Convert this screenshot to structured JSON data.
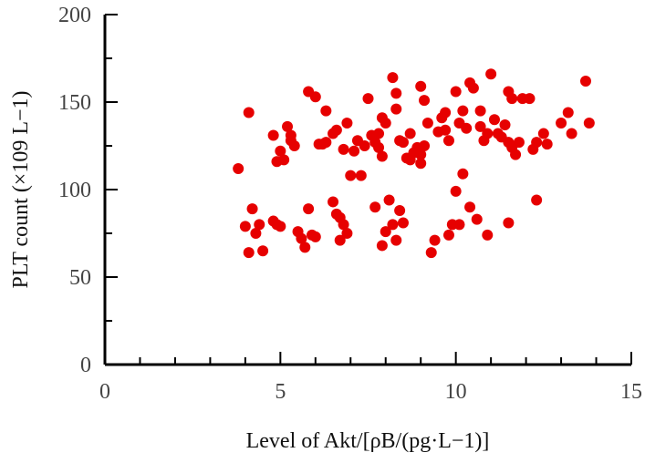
{
  "chart_data": {
    "type": "scatter",
    "xlabel": "Level of Akt/[ρB/(pg·L−1)]",
    "ylabel": "PLT count (×109 L−1)",
    "xlim": [
      0,
      15
    ],
    "ylim": [
      0,
      200
    ],
    "x_ticks": [
      "0",
      "5",
      "10",
      "15"
    ],
    "y_ticks": [
      "0",
      "50",
      "100",
      "150",
      "200"
    ],
    "color": "#e60000",
    "grid": false,
    "points": [
      [
        3.8,
        112
      ],
      [
        4.1,
        144
      ],
      [
        4.0,
        79
      ],
      [
        4.2,
        89
      ],
      [
        4.1,
        64
      ],
      [
        4.3,
        75
      ],
      [
        4.4,
        80
      ],
      [
        4.5,
        65
      ],
      [
        4.8,
        82
      ],
      [
        4.9,
        80
      ],
      [
        5.0,
        79
      ],
      [
        4.8,
        131
      ],
      [
        5.0,
        122
      ],
      [
        4.9,
        116
      ],
      [
        5.1,
        117
      ],
      [
        5.2,
        136
      ],
      [
        5.3,
        131
      ],
      [
        5.4,
        125
      ],
      [
        5.3,
        128
      ],
      [
        5.5,
        76
      ],
      [
        5.6,
        72
      ],
      [
        5.7,
        67
      ],
      [
        5.8,
        89
      ],
      [
        5.9,
        74
      ],
      [
        6.0,
        73
      ],
      [
        5.8,
        156
      ],
      [
        6.0,
        153
      ],
      [
        6.1,
        126
      ],
      [
        6.2,
        126
      ],
      [
        6.3,
        127
      ],
      [
        6.3,
        145
      ],
      [
        6.5,
        132
      ],
      [
        6.6,
        134
      ],
      [
        6.5,
        93
      ],
      [
        6.6,
        86
      ],
      [
        6.7,
        84
      ],
      [
        6.8,
        80
      ],
      [
        6.9,
        75
      ],
      [
        6.7,
        71
      ],
      [
        6.8,
        123
      ],
      [
        6.9,
        138
      ],
      [
        7.0,
        108
      ],
      [
        7.1,
        122
      ],
      [
        7.2,
        128
      ],
      [
        7.3,
        108
      ],
      [
        7.4,
        125
      ],
      [
        7.5,
        152
      ],
      [
        7.6,
        131
      ],
      [
        7.7,
        127
      ],
      [
        7.8,
        124
      ],
      [
        7.9,
        119
      ],
      [
        7.8,
        132
      ],
      [
        7.9,
        141
      ],
      [
        8.0,
        138
      ],
      [
        7.7,
        90
      ],
      [
        7.9,
        68
      ],
      [
        8.0,
        76
      ],
      [
        8.1,
        94
      ],
      [
        8.2,
        80
      ],
      [
        8.3,
        71
      ],
      [
        8.4,
        88
      ],
      [
        8.5,
        81
      ],
      [
        8.2,
        164
      ],
      [
        8.3,
        155
      ],
      [
        8.3,
        146
      ],
      [
        8.4,
        128
      ],
      [
        8.5,
        127
      ],
      [
        8.6,
        118
      ],
      [
        8.7,
        117
      ],
      [
        8.8,
        121
      ],
      [
        8.9,
        124
      ],
      [
        9.0,
        120
      ],
      [
        9.1,
        125
      ],
      [
        9.0,
        115
      ],
      [
        8.7,
        132
      ],
      [
        9.0,
        159
      ],
      [
        9.1,
        151
      ],
      [
        9.2,
        138
      ],
      [
        9.3,
        64
      ],
      [
        9.4,
        71
      ],
      [
        9.5,
        133
      ],
      [
        9.6,
        141
      ],
      [
        9.7,
        144
      ],
      [
        9.7,
        134
      ],
      [
        9.8,
        128
      ],
      [
        9.9,
        80
      ],
      [
        9.8,
        74
      ],
      [
        10.0,
        99
      ],
      [
        10.1,
        80
      ],
      [
        10.2,
        109
      ],
      [
        10.0,
        156
      ],
      [
        10.1,
        138
      ],
      [
        10.2,
        145
      ],
      [
        10.3,
        135
      ],
      [
        10.4,
        161
      ],
      [
        10.5,
        158
      ],
      [
        10.4,
        90
      ],
      [
        10.6,
        83
      ],
      [
        10.7,
        145
      ],
      [
        10.8,
        128
      ],
      [
        10.9,
        132
      ],
      [
        10.7,
        136
      ],
      [
        11.0,
        166
      ],
      [
        11.1,
        140
      ],
      [
        10.9,
        74
      ],
      [
        11.2,
        132
      ],
      [
        11.3,
        130
      ],
      [
        11.4,
        137
      ],
      [
        11.5,
        156
      ],
      [
        11.6,
        152
      ],
      [
        11.5,
        127
      ],
      [
        11.6,
        124
      ],
      [
        11.7,
        120
      ],
      [
        11.8,
        127
      ],
      [
        11.5,
        81
      ],
      [
        11.9,
        152
      ],
      [
        12.1,
        152
      ],
      [
        12.2,
        123
      ],
      [
        12.3,
        127
      ],
      [
        12.3,
        94
      ],
      [
        12.5,
        132
      ],
      [
        12.6,
        126
      ],
      [
        13.0,
        138
      ],
      [
        13.2,
        144
      ],
      [
        13.3,
        132
      ],
      [
        13.7,
        162
      ],
      [
        13.8,
        138
      ]
    ]
  }
}
